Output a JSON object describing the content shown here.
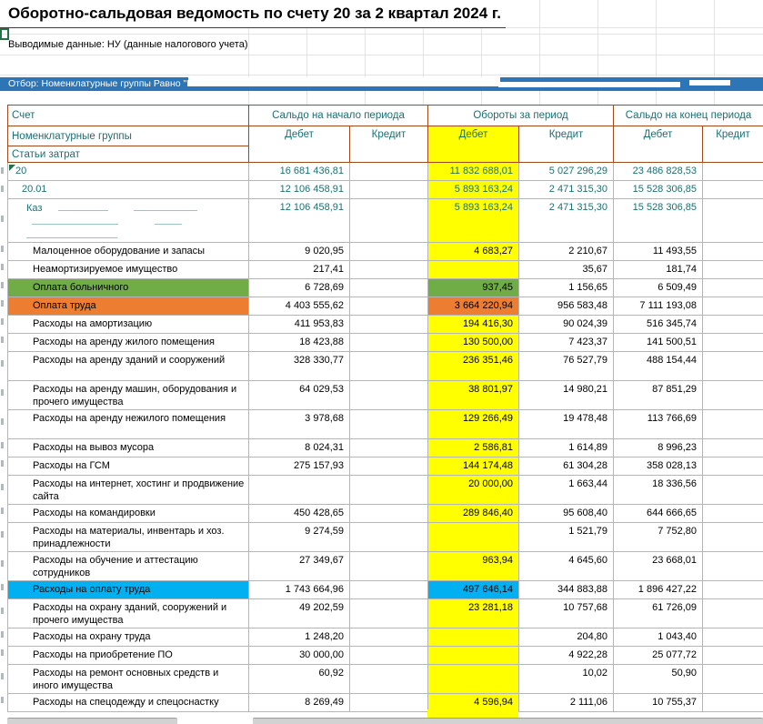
{
  "title": "Оборотно-сальдовая ведомость по счету 20 за 2 квартал 2024 г.",
  "info_line": "Выводимые данные: НУ (данные налогового учета)",
  "filter_line": "Отбор: Номенклатурные группы Равно \"Каза",
  "header": {
    "col1_row1": "Счет",
    "col1_row2": "Номенклатурные группы",
    "col1_row3": "Статьи затрат",
    "group_begin": "Сальдо на начало периода",
    "group_turnover": "Обороты за период",
    "group_end": "Сальдо на конец периода",
    "debit": "Дебет",
    "credit": "Кредит"
  },
  "colors": {
    "accent_blue": "#2e75b6",
    "yellow": "#ffff00",
    "green": "#70ad47",
    "orange": "#ed7d31",
    "cyan": "#00b0f0",
    "teal_text": "#1c6f73",
    "header_border": "#a1491f"
  },
  "rows": [
    {
      "name": "20",
      "level": 0,
      "cls": "account",
      "h": 1,
      "corner": true,
      "nd": "16 681 436,81",
      "nk": "",
      "od": "11 832 688,01",
      "ok": "5 027 296,29",
      "kd": "23 486 828,53",
      "kk": ""
    },
    {
      "name": "20.01",
      "level": 1,
      "cls": "account",
      "h": 1,
      "nd": "12 106 458,91",
      "nk": "",
      "od": "5 893 163,24",
      "ok": "2 471 315,30",
      "kd": "15 528 306,85",
      "kk": ""
    },
    {
      "name": "Каз",
      "level": 2,
      "cls": "account",
      "h": 3,
      "redacted": true,
      "nd": "12 106 458,91",
      "nk": "",
      "od": "5 893 163,24",
      "ok": "2 471 315,30",
      "kd": "15 528 306,85",
      "kk": ""
    },
    {
      "name": "Малоценное оборудование и запасы",
      "level": 3,
      "h": 1,
      "nd": "9 020,95",
      "nk": "",
      "od": "4 683,27",
      "ok": "2 210,67",
      "kd": "11 493,55",
      "kk": ""
    },
    {
      "name": "Неамортизируемое имущество",
      "level": 3,
      "h": 1,
      "nd": "217,41",
      "nk": "",
      "od": "",
      "ok": "35,67",
      "kd": "181,74",
      "kk": ""
    },
    {
      "name": "Оплата больничного",
      "level": 3,
      "h": 1,
      "highlight": "green",
      "nd": "6 728,69",
      "nk": "",
      "od": "937,45",
      "ok": "1 156,65",
      "kd": "6 509,49",
      "kk": ""
    },
    {
      "name": "Оплата труда",
      "level": 3,
      "h": 1,
      "highlight": "orange",
      "nd": "4 403 555,62",
      "nk": "",
      "od": "3 664 220,94",
      "ok": "956 583,48",
      "kd": "7 111 193,08",
      "kk": ""
    },
    {
      "name": "Расходы на амортизацию",
      "level": 3,
      "h": 1,
      "nd": "411 953,83",
      "nk": "",
      "od": "194 416,30",
      "ok": "90 024,39",
      "kd": "516 345,74",
      "kk": ""
    },
    {
      "name": "Расходы на аренду жилого помещения",
      "level": 3,
      "h": 1,
      "nd": "18 423,88",
      "nk": "",
      "od": "130 500,00",
      "ok": "7 423,37",
      "kd": "141 500,51",
      "kk": ""
    },
    {
      "name": "Расходы на аренду зданий и сооружений",
      "level": 3,
      "h": 2,
      "nd": "328 330,77",
      "nk": "",
      "od": "236 351,46",
      "ok": "76 527,79",
      "kd": "488 154,44",
      "kk": ""
    },
    {
      "name": "Расходы на аренду машин, оборудования и прочего имущества",
      "level": 3,
      "h": 2,
      "nd": "64 029,53",
      "nk": "",
      "od": "38 801,97",
      "ok": "14 980,21",
      "kd": "87 851,29",
      "kk": ""
    },
    {
      "name": "Расходы на аренду нежилого помещения",
      "level": 3,
      "h": 2,
      "nd": "3 978,68",
      "nk": "",
      "od": "129 266,49",
      "ok": "19 478,48",
      "kd": "113 766,69",
      "kk": ""
    },
    {
      "name": "Расходы на вывоз мусора",
      "level": 3,
      "h": 1,
      "nd": "8 024,31",
      "nk": "",
      "od": "2 586,81",
      "ok": "1 614,89",
      "kd": "8 996,23",
      "kk": ""
    },
    {
      "name": "Расходы на ГСМ",
      "level": 3,
      "h": 1,
      "nd": "275 157,93",
      "nk": "",
      "od": "144 174,48",
      "ok": "61 304,28",
      "kd": "358 028,13",
      "kk": ""
    },
    {
      "name": "Расходы на интернет, хостинг и продвижение сайта",
      "level": 3,
      "h": 2,
      "nd": "",
      "nk": "",
      "od": "20 000,00",
      "ok": "1 663,44",
      "kd": "18 336,56",
      "kk": ""
    },
    {
      "name": "Расходы на командировки",
      "level": 3,
      "h": 1,
      "nd": "450 428,65",
      "nk": "",
      "od": "289 846,40",
      "ok": "95 608,40",
      "kd": "644 666,65",
      "kk": ""
    },
    {
      "name": "Расходы на материалы, инвентарь и хоз. принадлежности",
      "level": 3,
      "h": 2,
      "nd": "9 274,59",
      "nk": "",
      "od": "",
      "ok": "1 521,79",
      "kd": "7 752,80",
      "kk": ""
    },
    {
      "name": "Расходы на обучение и аттестацию сотрудников",
      "level": 3,
      "h": 2,
      "nd": "27 349,67",
      "nk": "",
      "od": "963,94",
      "ok": "4 645,60",
      "kd": "23 668,01",
      "kk": ""
    },
    {
      "name": "Расходы на оплату труда",
      "level": 3,
      "h": 1,
      "highlight": "cyan",
      "nd": "1 743 664,96",
      "nk": "",
      "od": "497 646,14",
      "ok": "344 883,88",
      "kd": "1 896 427,22",
      "kk": ""
    },
    {
      "name": "Расходы на охрану зданий, сооружений и прочего имущества",
      "level": 3,
      "h": 2,
      "nd": "49 202,59",
      "nk": "",
      "od": "23 281,18",
      "ok": "10 757,68",
      "kd": "61 726,09",
      "kk": ""
    },
    {
      "name": "Расходы на охрану труда",
      "level": 3,
      "h": 1,
      "nd": "1 248,20",
      "nk": "",
      "od": "",
      "ok": "204,80",
      "kd": "1 043,40",
      "kk": ""
    },
    {
      "name": "Расходы на приобретение ПО",
      "level": 3,
      "h": 1,
      "nd": "30 000,00",
      "nk": "",
      "od": "",
      "ok": "4 922,28",
      "kd": "25 077,72",
      "kk": ""
    },
    {
      "name": "Расходы на ремонт основных средств и иного имущества",
      "level": 3,
      "h": 2,
      "nd": "60,92",
      "nk": "",
      "od": "",
      "ok": "10,02",
      "kd": "50,90",
      "kk": ""
    },
    {
      "name": "Расходы на спецодежду и спецоснастку",
      "level": 3,
      "h": 1,
      "nd": "8 269,49",
      "nk": "",
      "od": "4 596,94",
      "ok": "2 111,06",
      "kd": "10 755,37",
      "kk": ""
    }
  ]
}
